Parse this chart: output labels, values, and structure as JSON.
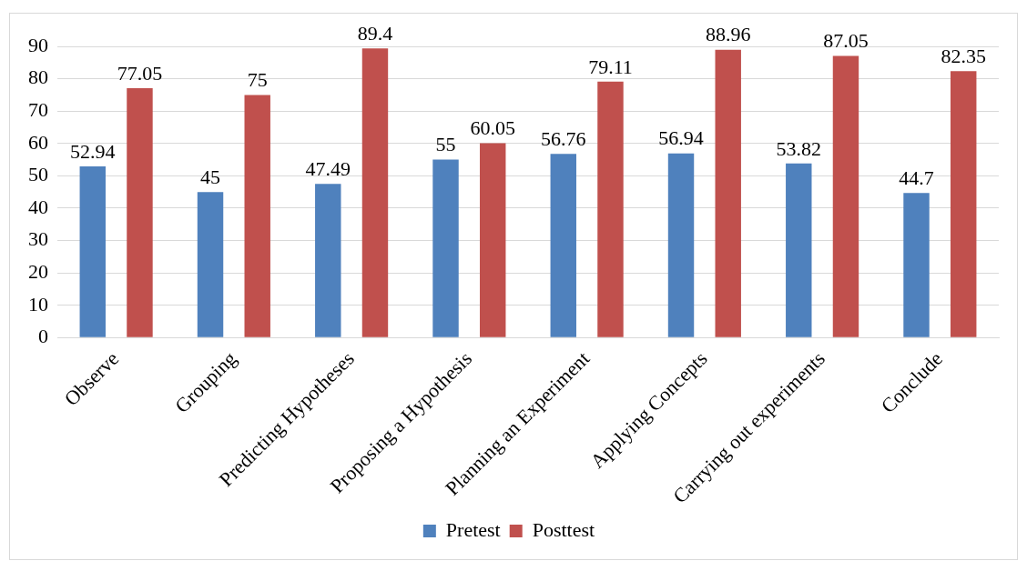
{
  "chart_data": {
    "type": "bar",
    "categories": [
      "Observe",
      "Grouping",
      "Predicting Hypotheses",
      "Proposing a Hypothesis",
      "Planning an Experiment",
      "Applying Concepts",
      "Carrying out experiments",
      "Conclude"
    ],
    "series": [
      {
        "name": "Pretest",
        "color": "#4f81bd",
        "values": [
          52.94,
          45,
          47.49,
          55,
          56.76,
          56.94,
          53.82,
          44.7
        ]
      },
      {
        "name": "Posttest",
        "color": "#c0504d",
        "values": [
          77.05,
          75,
          89.4,
          60.05,
          79.11,
          88.96,
          87.05,
          82.35
        ]
      }
    ],
    "ylim": [
      0,
      90
    ],
    "yticks": [
      0,
      10,
      20,
      30,
      40,
      50,
      60,
      70,
      80,
      90
    ],
    "grid": "y",
    "legend": "bottom",
    "data_labels": true
  }
}
